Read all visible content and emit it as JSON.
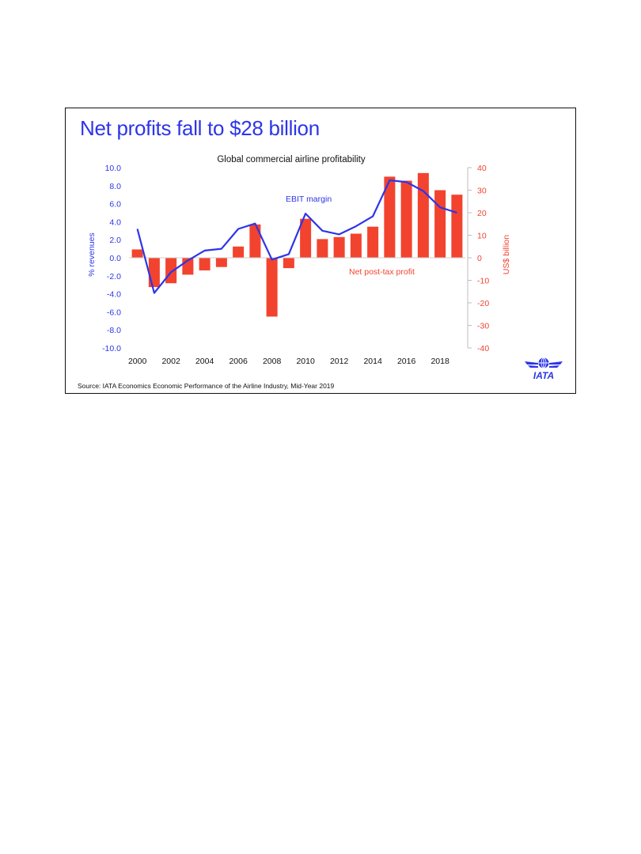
{
  "slide": {
    "headline": "Net profits fall to $28 billion",
    "source": "Source: IATA Economics Economic Performance of the Airline Industry, Mid-Year 2019",
    "logo_text": "IATA",
    "logo_icon": "globe-wings-icon"
  },
  "colors": {
    "headline": "#2d35e8",
    "line": "#2d35e8",
    "bars": "#f2432f",
    "right_axis": "#f2432f",
    "left_axis": "#2d35e8"
  },
  "chart_data": {
    "type": "bar",
    "title": "Global commercial airline profitability",
    "x": [
      2000,
      2001,
      2002,
      2003,
      2004,
      2005,
      2006,
      2007,
      2008,
      2009,
      2010,
      2011,
      2012,
      2013,
      2014,
      2015,
      2016,
      2017,
      2018,
      2019
    ],
    "x_tick_labels": [
      "2000",
      "2002",
      "2004",
      "2006",
      "2008",
      "2010",
      "2012",
      "2014",
      "2016",
      "2018"
    ],
    "series": [
      {
        "name": "Net post-tax profit",
        "type": "bar",
        "axis": "right",
        "values": [
          3.7,
          -13,
          -11.3,
          -7.5,
          -5.6,
          -4.1,
          5,
          14.8,
          -26.1,
          -4.6,
          17.3,
          8.3,
          9.2,
          10.7,
          13.8,
          36,
          34.2,
          37.6,
          30,
          28
        ]
      },
      {
        "name": "EBIT margin",
        "type": "line",
        "axis": "left",
        "values": [
          3.2,
          -3.9,
          -1.6,
          -0.3,
          0.8,
          1.0,
          3.2,
          3.8,
          -0.2,
          0.4,
          4.9,
          3.0,
          2.6,
          3.5,
          4.6,
          8.6,
          8.4,
          7.4,
          5.6,
          5.0
        ]
      }
    ],
    "ylabel_left": "% revenues",
    "ylim_left": [
      -10,
      10
    ],
    "yticks_left": [
      "10.0",
      "8.0",
      "6.0",
      "4.0",
      "2.0",
      "0.0",
      "-2.0",
      "-4.0",
      "-6.0",
      "-8.0",
      "-10.0"
    ],
    "ylabel_right": "US$ billion",
    "ylim_right": [
      -40,
      40
    ],
    "yticks_right": [
      "40",
      "30",
      "20",
      "10",
      "0",
      "-10",
      "-20",
      "-30",
      "-40"
    ],
    "annotations": {
      "line_label": "EBIT margin",
      "bar_label": "Net post-tax profit"
    },
    "grid": false,
    "legend": "none"
  }
}
